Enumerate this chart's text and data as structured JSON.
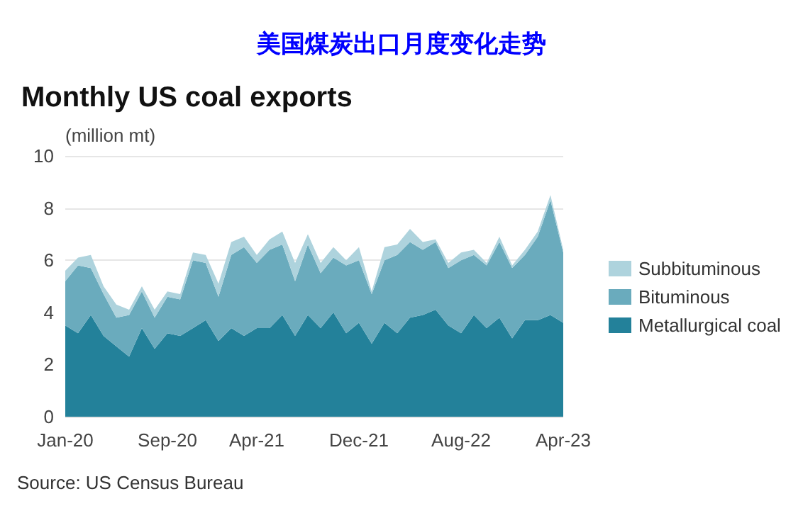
{
  "chart_data": {
    "type": "area",
    "title": "美国煤炭出口月度变化走势",
    "subtitle": "Monthly US coal exports",
    "ylabel": "(million mt)",
    "annotations": [
      "Source: US Census Bureau"
    ],
    "categories": [
      "Jan-20",
      null,
      null,
      null,
      null,
      null,
      null,
      null,
      "Sep-20",
      null,
      null,
      null,
      null,
      null,
      null,
      "Apr-21",
      null,
      null,
      null,
      null,
      null,
      null,
      null,
      "Dec-21",
      null,
      null,
      null,
      null,
      null,
      null,
      null,
      "Aug-22",
      null,
      null,
      null,
      null,
      null,
      null,
      null,
      "Apr-23"
    ],
    "stacked": true,
    "ylim": [
      0,
      10
    ],
    "yticks": [
      0,
      2,
      4,
      6,
      8,
      10
    ],
    "grid": "y",
    "legend": "right",
    "series": [
      {
        "name": "Metallurgical coal",
        "color": "#23819a",
        "values": [
          3.5,
          3.2,
          3.9,
          3.1,
          2.7,
          2.3,
          3.4,
          2.6,
          3.2,
          3.1,
          3.4,
          3.7,
          2.9,
          3.4,
          3.1,
          3.4,
          3.4,
          3.9,
          3.1,
          3.9,
          3.4,
          4.0,
          3.2,
          3.6,
          2.8,
          3.6,
          3.2,
          3.8,
          3.9,
          4.1,
          3.5,
          3.2,
          3.9,
          3.4,
          3.8,
          3.0,
          3.7,
          3.7,
          3.9,
          3.6
        ]
      },
      {
        "name": "Bituminous",
        "color": "#6aabbd",
        "values": [
          1.7,
          2.6,
          1.8,
          1.6,
          1.1,
          1.6,
          1.4,
          1.2,
          1.4,
          1.4,
          2.6,
          2.2,
          1.7,
          2.8,
          3.4,
          2.5,
          3.0,
          2.7,
          2.1,
          2.7,
          2.1,
          2.1,
          2.6,
          2.4,
          1.9,
          2.4,
          3.0,
          2.9,
          2.5,
          2.6,
          2.2,
          2.8,
          2.3,
          2.4,
          2.9,
          2.7,
          2.5,
          3.2,
          4.4,
          2.7
        ]
      },
      {
        "name": "Subbituminous",
        "color": "#aed3dd",
        "values": [
          0.4,
          0.3,
          0.5,
          0.3,
          0.5,
          0.2,
          0.2,
          0.3,
          0.2,
          0.2,
          0.3,
          0.3,
          0.5,
          0.5,
          0.4,
          0.3,
          0.4,
          0.5,
          0.7,
          0.4,
          0.4,
          0.4,
          0.2,
          0.5,
          0.1,
          0.5,
          0.4,
          0.5,
          0.3,
          0.1,
          0.2,
          0.3,
          0.2,
          0.1,
          0.2,
          0.1,
          0.2,
          0.2,
          0.2,
          0.1
        ]
      }
    ]
  }
}
